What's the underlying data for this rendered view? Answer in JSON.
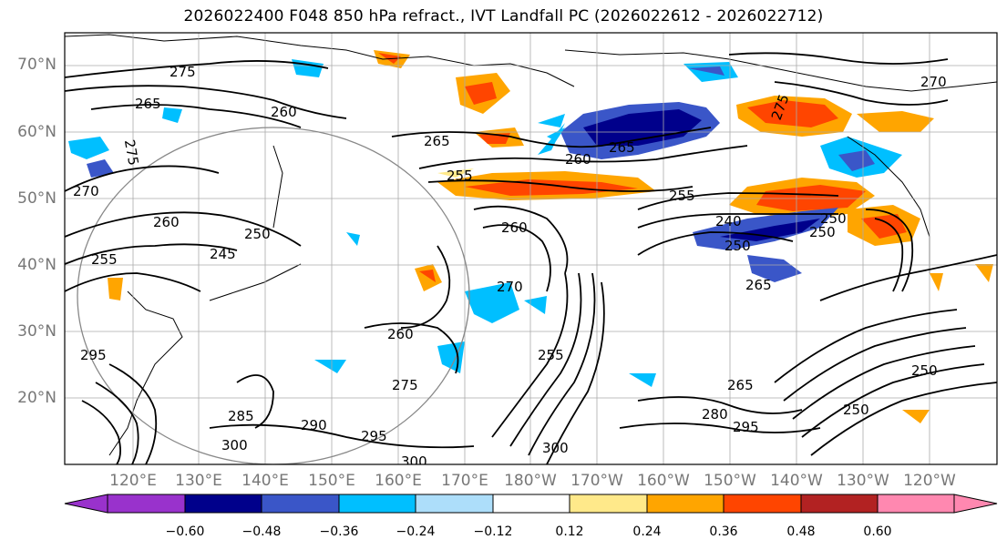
{
  "title": "2026022400 F048 850 hPa refract., IVT Landfall PC (2026022612 - 2026022712)",
  "lat_labels": [
    "70°N",
    "60°N",
    "50°N",
    "40°N",
    "30°N",
    "20°N"
  ],
  "lon_labels": [
    "120°E",
    "130°E",
    "140°E",
    "150°E",
    "160°E",
    "170°E",
    "180°W",
    "170°W",
    "160°W",
    "150°W",
    "140°W",
    "130°W",
    "120°W"
  ],
  "colorbar": {
    "labels": [
      "−0.60",
      "−0.48",
      "−0.36",
      "−0.24",
      "−0.12",
      "0.12",
      "0.24",
      "0.36",
      "0.48",
      "0.60"
    ],
    "colors": [
      "#9932CC",
      "#00008B",
      "#3A56C8",
      "#00BFFF",
      "#ADDEFA",
      "#FFFFFF",
      "#FFE98A",
      "#FFA500",
      "#FF4500",
      "#B22222",
      "#FF88B0"
    ]
  },
  "contour_labels": [
    "265",
    "260",
    "275",
    "255",
    "270",
    "250",
    "245",
    "240",
    "280",
    "285",
    "290",
    "295",
    "300"
  ]
}
